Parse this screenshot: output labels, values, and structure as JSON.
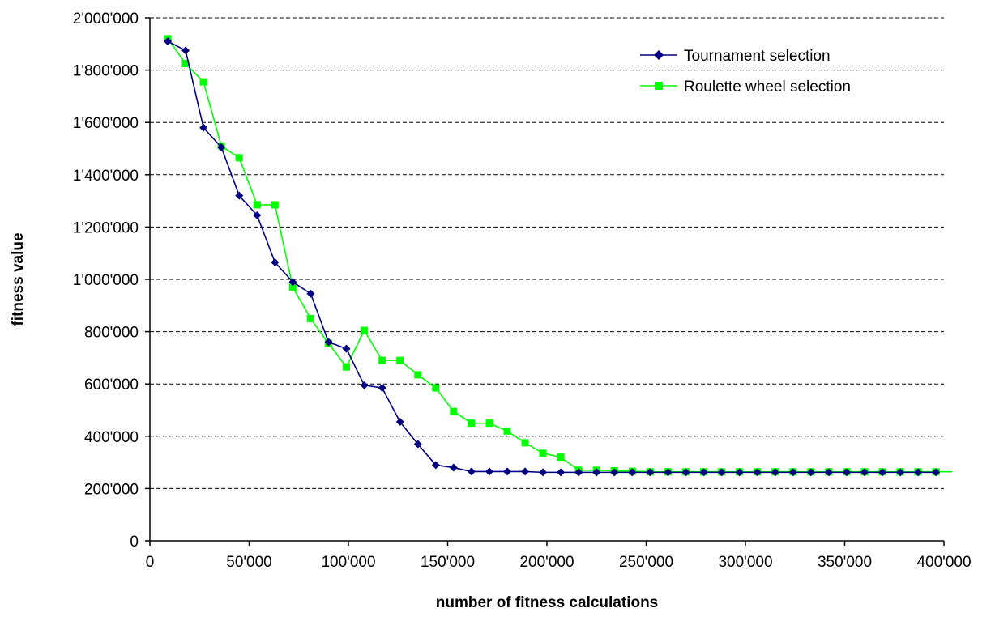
{
  "chart_data": {
    "type": "line",
    "title": "",
    "xlabel": "number of fitness calculations",
    "ylabel": "fitness value",
    "xlim": [
      0,
      400000
    ],
    "ylim": [
      0,
      2000000
    ],
    "x_ticks": [
      0,
      50000,
      100000,
      150000,
      200000,
      250000,
      300000,
      350000,
      400000
    ],
    "x_tick_labels": [
      "0",
      "50'000",
      "100'000",
      "150'000",
      "200'000",
      "250'000",
      "300'000",
      "350'000",
      "400'000"
    ],
    "y_ticks": [
      0,
      200000,
      400000,
      600000,
      800000,
      1000000,
      1200000,
      1400000,
      1600000,
      1800000,
      2000000
    ],
    "y_tick_labels": [
      "0",
      "200'000",
      "400'000",
      "600'000",
      "800'000",
      "1'000'000",
      "1'200'000",
      "1'400'000",
      "1'600'000",
      "1'800'000",
      "2'000'000"
    ],
    "grid": "horizontal dashed",
    "legend_position": "top-right",
    "series": [
      {
        "name": "Tournament selection",
        "color": "#000080",
        "marker": "diamond",
        "x": [
          9000,
          18000,
          27000,
          36000,
          45000,
          54000,
          63000,
          72000,
          81000,
          90000,
          99000,
          108000,
          117000,
          126000,
          135000,
          144000,
          153000,
          162000,
          171000,
          180000,
          189000,
          198000,
          207000,
          216000,
          225000,
          234000,
          243000,
          252000,
          261000,
          270000,
          279000,
          288000,
          297000,
          306000,
          315000,
          324000,
          333000,
          342000,
          351000,
          360000,
          369000,
          378000,
          387000,
          396000
        ],
        "values": [
          1910000,
          1875000,
          1580000,
          1505000,
          1320000,
          1245000,
          1065000,
          990000,
          945000,
          760000,
          735000,
          595000,
          585000,
          455000,
          370000,
          290000,
          280000,
          265000,
          265000,
          265000,
          265000,
          262000,
          262000,
          262000,
          262000,
          262000,
          262000,
          262000,
          262000,
          262000,
          262000,
          262000,
          262000,
          262000,
          262000,
          262000,
          262000,
          262000,
          262000,
          262000,
          262000,
          262000,
          262000,
          262000
        ]
      },
      {
        "name": "Roulette wheel selection",
        "color": "#00ff00",
        "marker": "square",
        "x": [
          9000,
          18000,
          27000,
          36000,
          45000,
          54000,
          63000,
          72000,
          81000,
          90000,
          99000,
          108000,
          117000,
          126000,
          135000,
          144000,
          153000,
          162000,
          171000,
          180000,
          189000,
          198000,
          207000,
          216000,
          225000,
          234000,
          243000,
          252000,
          261000,
          270000,
          279000,
          288000,
          297000,
          306000,
          315000,
          324000,
          333000,
          342000,
          351000,
          360000,
          369000,
          378000,
          387000,
          396000
        ],
        "values": [
          1920000,
          1825000,
          1755000,
          1510000,
          1465000,
          1285000,
          1285000,
          970000,
          850000,
          755000,
          665000,
          805000,
          690000,
          690000,
          635000,
          585000,
          495000,
          450000,
          450000,
          420000,
          375000,
          335000,
          320000,
          270000,
          270000,
          268000,
          266000,
          264000,
          264000,
          264000,
          264000,
          264000,
          264000,
          264000,
          264000,
          264000,
          264000,
          264000,
          264000,
          264000,
          264000,
          264000,
          264000,
          264000
        ]
      }
    ]
  }
}
